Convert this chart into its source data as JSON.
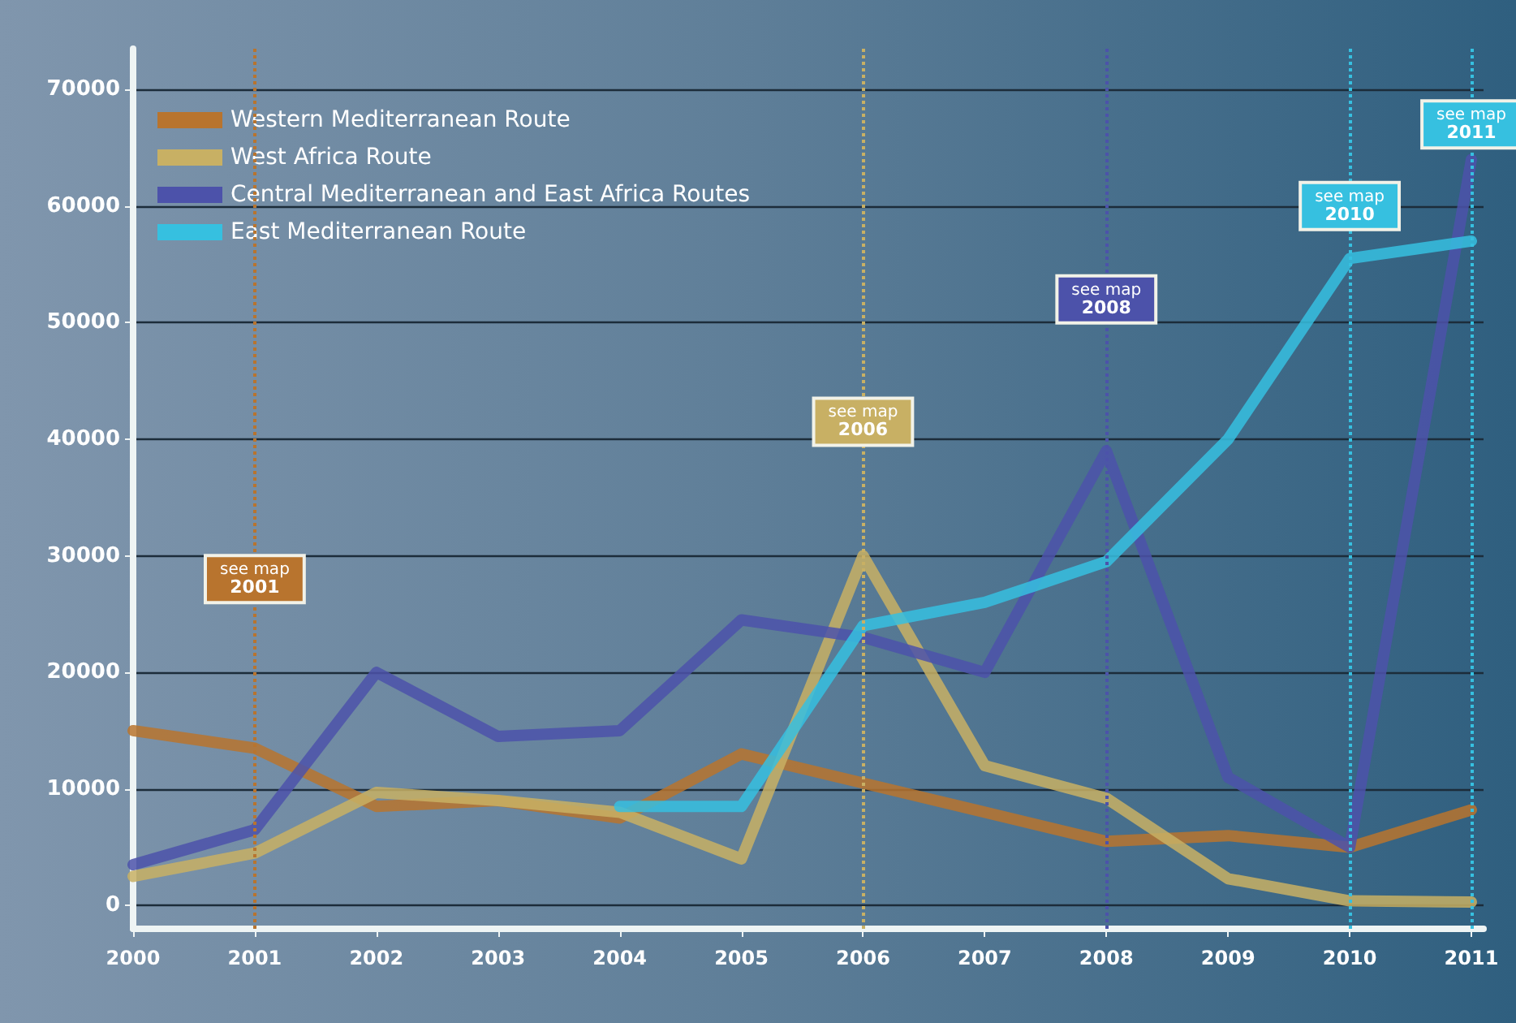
{
  "chart_data": {
    "type": "line",
    "x": [
      2000,
      2001,
      2002,
      2003,
      2004,
      2005,
      2006,
      2007,
      2008,
      2009,
      2010,
      2011
    ],
    "series": [
      {
        "name": "Western Mediterranean Route",
        "color": "#b8742e",
        "values": [
          15000,
          13500,
          8500,
          9000,
          7500,
          13000,
          10500,
          8000,
          5500,
          6000,
          5000,
          8200
        ]
      },
      {
        "name": "West Africa Route",
        "color": "#c8b064",
        "values": [
          2500,
          4500,
          9700,
          9000,
          8000,
          4000,
          30000,
          12000,
          9200,
          2300,
          400,
          300
        ]
      },
      {
        "name": "Central Mediterranean and East Africa Routes",
        "color": "#4c52aa",
        "values": [
          3500,
          6500,
          20000,
          14500,
          15000,
          24500,
          23000,
          20000,
          39000,
          11000,
          5000,
          64000
        ]
      },
      {
        "name": "East Mediterranean Route",
        "color": "#36c0e0",
        "values": [
          null,
          null,
          null,
          null,
          8500,
          8500,
          24000,
          26000,
          29500,
          40000,
          55500,
          57000
        ]
      }
    ],
    "xlim": [
      2000,
      2011.1
    ],
    "xticks": [
      2000,
      2001,
      2002,
      2003,
      2004,
      2005,
      2006,
      2007,
      2008,
      2009,
      2010,
      2011
    ],
    "ylim": [
      -2000,
      73500
    ],
    "yticks": [
      0,
      10000,
      20000,
      30000,
      40000,
      50000,
      60000,
      70000
    ],
    "grid": "y",
    "legend": "top left",
    "marker": "none",
    "line_style": "solid",
    "ref_lines": [
      {
        "axis": "x",
        "value": 2001,
        "color": "#b8742e",
        "line_style": "dotted"
      },
      {
        "axis": "x",
        "value": 2006,
        "color": "#c8b064",
        "line_style": "dotted"
      },
      {
        "axis": "x",
        "value": 2008,
        "color": "#4c52aa",
        "line_style": "dotted"
      },
      {
        "axis": "x",
        "value": 2010,
        "color": "#36c0e0",
        "line_style": "dotted"
      },
      {
        "axis": "x",
        "value": 2011,
        "color": "#36c0e0",
        "line_style": "dotted"
      }
    ],
    "annotations": [
      {
        "text": "see map\n2001",
        "x": 2001,
        "y": 28000
      },
      {
        "text": "see map\n2006",
        "x": 2006,
        "y": 41500
      },
      {
        "text": "see map\n2008",
        "x": 2008,
        "y": 52000
      },
      {
        "text": "see map\n2010",
        "x": 2010,
        "y": 60000
      },
      {
        "text": "see map\n2011",
        "x": 2011,
        "y": 67000
      }
    ]
  }
}
